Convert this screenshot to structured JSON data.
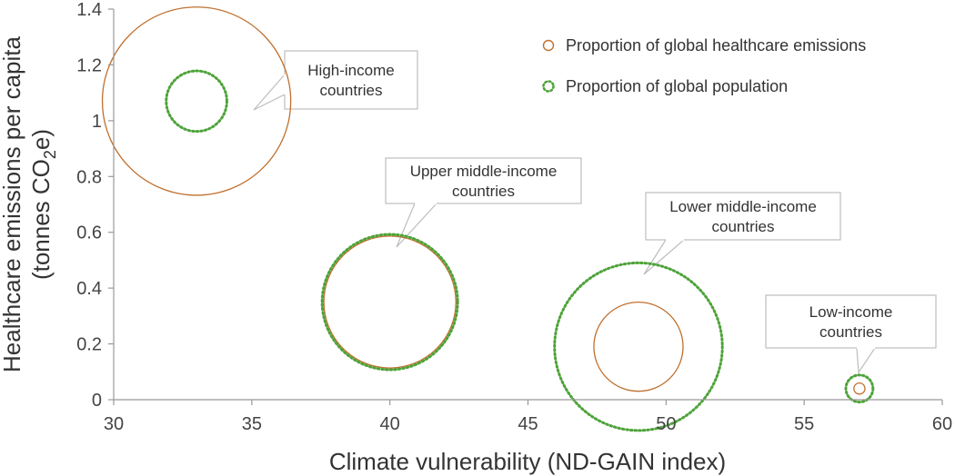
{
  "chart_data": {
    "type": "scatter",
    "title": "",
    "xlabel": "Climate vulnerability (ND-GAIN index)",
    "ylabel_line1": "Healthcare emissions per capita",
    "ylabel_line2_prefix": "(tonnes CO",
    "ylabel_line2_sub": "2",
    "ylabel_line2_suffix": "e)",
    "xlim": [
      30,
      60
    ],
    "ylim": [
      0,
      1.4
    ],
    "x_ticks": [
      30,
      35,
      40,
      45,
      50,
      55,
      60
    ],
    "y_ticks": [
      0,
      0.2,
      0.4,
      0.6,
      0.8,
      1,
      1.2,
      1.4
    ],
    "y_tick_labels": [
      "0",
      "0.2",
      "0.4",
      "0.6",
      "0.8",
      "1",
      "1.2",
      "1.4"
    ],
    "grid": false,
    "legend_position": "top-right",
    "series": [
      {
        "name": "Proportion of global healthcare emissions",
        "style": "solid",
        "color": "#c0702e",
        "points": [
          {
            "group": "High-income countries",
            "x": 33,
            "y": 1.07,
            "proportion": 0.58
          },
          {
            "group": "Upper middle-income countries",
            "x": 40,
            "y": 0.35,
            "proportion": 0.285
          },
          {
            "group": "Lower middle-income countries",
            "x": 49,
            "y": 0.19,
            "proportion": 0.13
          },
          {
            "group": "Low-income countries",
            "x": 57,
            "y": 0.04,
            "proportion": 0.002
          }
        ]
      },
      {
        "name": "Proportion of global population",
        "style": "dotted",
        "color": "#4ea33a",
        "points": [
          {
            "group": "High-income countries",
            "x": 33,
            "y": 1.07,
            "proportion": 0.06
          },
          {
            "group": "Upper middle-income countries",
            "x": 40,
            "y": 0.35,
            "proportion": 0.3
          },
          {
            "group": "Lower middle-income countries",
            "x": 49,
            "y": 0.19,
            "proportion": 0.46
          },
          {
            "group": "Low-income countries",
            "x": 57,
            "y": 0.04,
            "proportion": 0.012
          }
        ]
      }
    ],
    "annotations": [
      {
        "lines": [
          "High-income",
          "countries"
        ],
        "target_x": 33,
        "target_y": 1.07
      },
      {
        "lines": [
          "Upper middle-income",
          "countries"
        ],
        "target_x": 40,
        "target_y": 0.35
      },
      {
        "lines": [
          "Lower middle-income",
          "countries"
        ],
        "target_x": 49,
        "target_y": 0.19
      },
      {
        "lines": [
          "Low-income",
          "countries"
        ],
        "target_x": 57,
        "target_y": 0.04
      }
    ]
  }
}
